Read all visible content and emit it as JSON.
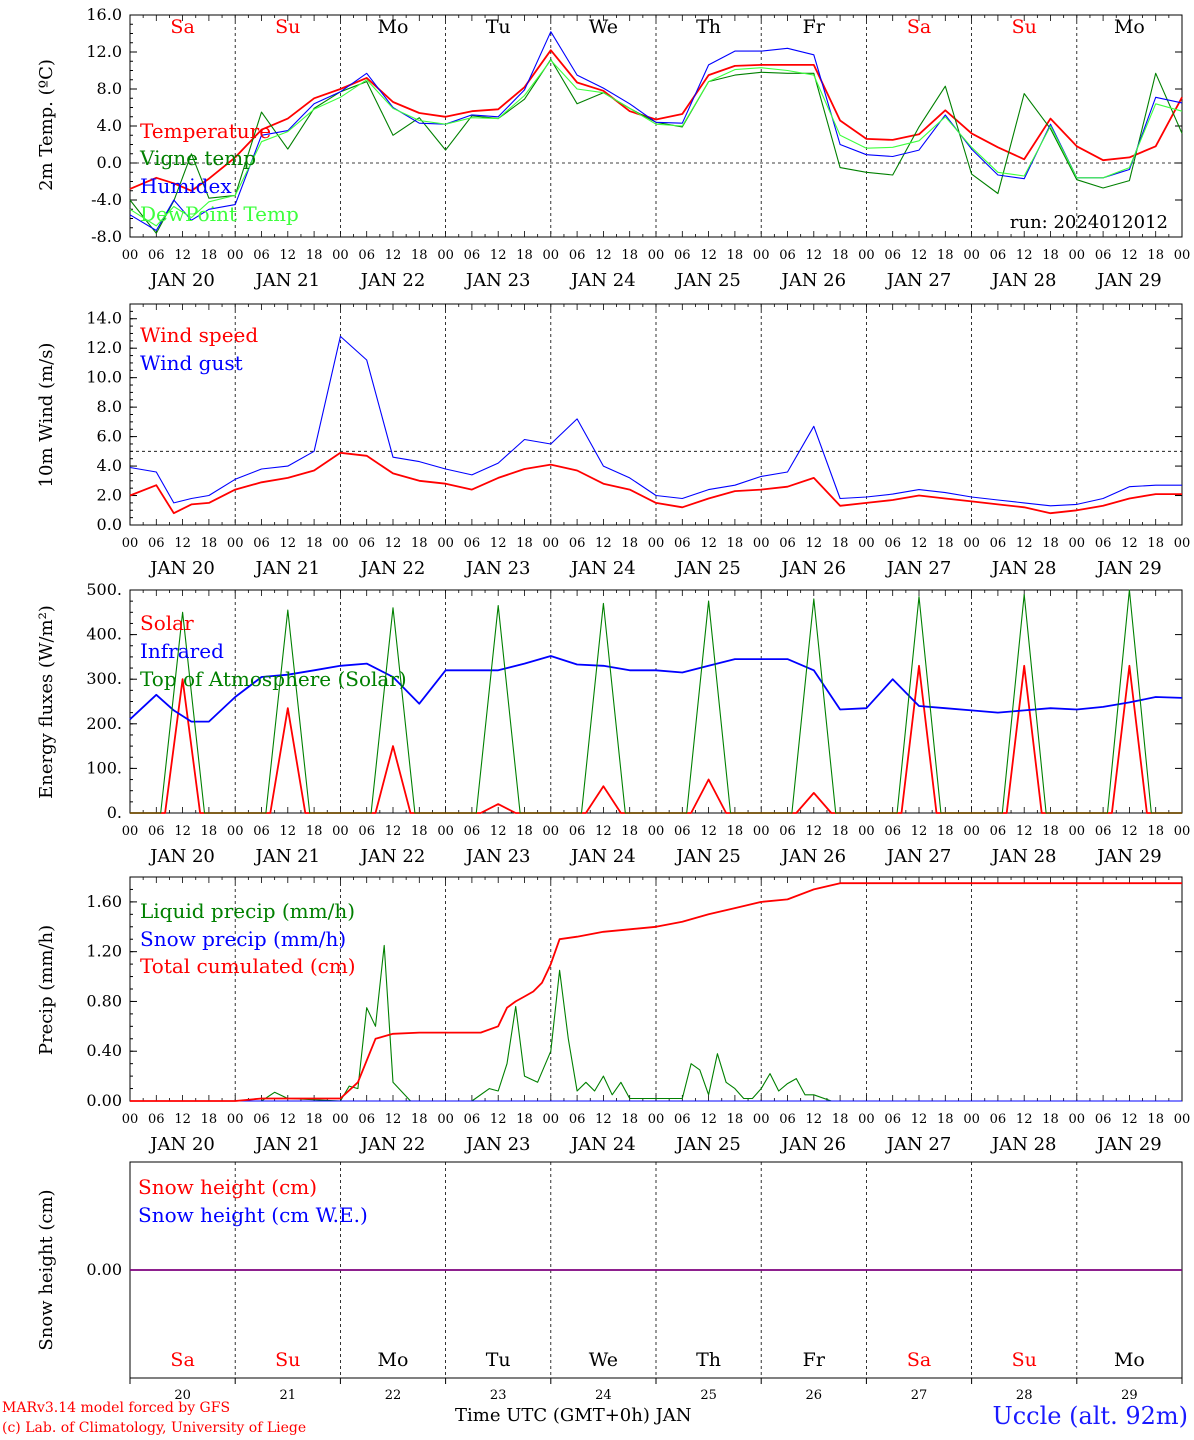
{
  "footer": {
    "credit_line1": "MARv3.14 model forced by GFS",
    "credit_line2": "(c) Lab. of Climatology, University of Liege",
    "x_axis_title": "Time UTC (GMT+0h) JAN",
    "station": "Uccle (alt. 92m)"
  },
  "run_label": "run: 2024012012",
  "colors": {
    "red": "#ff0000",
    "blue": "#0000ff",
    "dark_green": "#008000",
    "light_green": "#3dff3d",
    "purple": "#7f007f",
    "black": "#000000"
  },
  "chart_data": [
    {
      "type": "line",
      "panel": "temperature",
      "ylabel": "2m Temp. (ºC)",
      "ylim": [
        -8,
        16
      ],
      "yticks": [
        "-8.0",
        "-4.0",
        "0.0",
        "4.0",
        "8.0",
        "12.0",
        "16.0"
      ],
      "reference_line": 0,
      "weekdays": [
        "Sa",
        "Su",
        "Mo",
        "Tu",
        "We",
        "Th",
        "Fr",
        "Sa",
        "Su",
        "Mo"
      ],
      "weekday_colors": [
        "#ff0000",
        "#ff0000",
        "#000000",
        "#000000",
        "#000000",
        "#000000",
        "#000000",
        "#ff0000",
        "#ff0000",
        "#000000"
      ],
      "annotation": "run: 2024012012",
      "series": [
        {
          "name": "Temperature",
          "color": "#ff0000",
          "x": [
            0,
            6,
            10,
            14,
            18,
            24,
            30,
            36,
            42,
            48,
            54,
            60,
            66,
            72,
            78,
            84,
            90,
            96,
            102,
            108,
            114,
            120,
            126,
            132,
            138,
            144,
            150,
            156,
            162,
            168,
            174,
            180,
            186,
            192,
            198,
            204,
            210,
            216,
            222,
            228,
            234,
            240
          ],
          "y": [
            -2.8,
            -1.6,
            -2.2,
            -3.0,
            -1.7,
            0.6,
            3.6,
            4.8,
            7.0,
            8.0,
            9.2,
            6.6,
            5.4,
            5.0,
            5.6,
            5.8,
            8.2,
            12.2,
            8.7,
            7.8,
            5.6,
            4.7,
            5.3,
            9.5,
            10.5,
            10.6,
            10.6,
            10.6,
            4.6,
            2.6,
            2.5,
            3.1,
            5.7,
            3.2,
            1.7,
            0.4,
            4.8,
            1.8,
            0.3,
            0.6,
            1.8,
            7.1
          ]
        },
        {
          "name": "Vigne temp",
          "color": "#008000",
          "x": [
            0,
            6,
            10,
            14,
            18,
            24,
            30,
            36,
            42,
            48,
            54,
            60,
            66,
            72,
            78,
            84,
            90,
            96,
            102,
            108,
            114,
            120,
            126,
            132,
            138,
            144,
            150,
            156,
            162,
            168,
            174,
            180,
            186,
            192,
            198,
            204,
            210,
            216,
            222,
            228,
            234,
            240
          ],
          "y": [
            -4.0,
            -7.6,
            -4.1,
            1.0,
            -3.8,
            -3.5,
            5.5,
            1.5,
            5.9,
            7.7,
            8.8,
            3.0,
            4.9,
            1.4,
            5.1,
            4.8,
            6.9,
            11.2,
            6.4,
            7.6,
            5.9,
            4.4,
            3.9,
            8.8,
            9.5,
            9.8,
            9.7,
            9.7,
            -0.5,
            -1.0,
            -1.3,
            3.9,
            8.3,
            -1.2,
            -3.3,
            7.5,
            3.7,
            -1.8,
            -2.7,
            -1.9,
            9.7,
            3.2
          ]
        },
        {
          "name": "Humidex",
          "color": "#0000ff",
          "x": [
            0,
            6,
            10,
            14,
            18,
            24,
            30,
            36,
            42,
            48,
            54,
            60,
            66,
            72,
            78,
            84,
            90,
            96,
            102,
            108,
            114,
            120,
            126,
            132,
            138,
            144,
            150,
            156,
            162,
            168,
            174,
            180,
            186,
            192,
            198,
            204,
            210,
            216,
            222,
            228,
            234,
            240
          ],
          "y": [
            -5.6,
            -7.3,
            -4.0,
            -6.2,
            -5.0,
            -4.5,
            3.0,
            3.5,
            6.4,
            7.7,
            9.7,
            6.0,
            4.3,
            4.2,
            5.2,
            5.0,
            7.9,
            14.2,
            9.5,
            8.1,
            6.4,
            4.4,
            4.3,
            10.6,
            12.1,
            12.1,
            12.4,
            11.7,
            2.0,
            0.9,
            0.7,
            1.4,
            5.2,
            1.5,
            -1.3,
            -1.7,
            4.2,
            -1.6,
            -1.6,
            -0.7,
            7.1,
            6.5
          ]
        },
        {
          "name": "DewPoint Temp",
          "color": "#3dff3d",
          "x": [
            0,
            6,
            10,
            14,
            18,
            24,
            30,
            36,
            42,
            48,
            54,
            60,
            66,
            72,
            78,
            84,
            90,
            96,
            102,
            108,
            114,
            120,
            126,
            132,
            138,
            144,
            150,
            156,
            162,
            168,
            174,
            180,
            186,
            192,
            198,
            204,
            210,
            216,
            222,
            228,
            234,
            240
          ],
          "y": [
            -5.0,
            -6.8,
            -4.7,
            -5.9,
            -4.2,
            -3.5,
            2.3,
            3.4,
            5.8,
            7.1,
            9.0,
            5.9,
            4.6,
            4.2,
            4.9,
            4.8,
            7.3,
            11.1,
            8.0,
            7.6,
            5.9,
            4.2,
            4.0,
            8.8,
            10.1,
            10.3,
            10.0,
            9.5,
            3.0,
            1.6,
            1.7,
            2.4,
            5.0,
            1.7,
            -1.0,
            -1.4,
            4.0,
            -1.6,
            -1.6,
            -0.5,
            6.4,
            5.6
          ]
        }
      ]
    },
    {
      "type": "line",
      "panel": "wind",
      "ylabel": "10m Wind (m/s)",
      "ylim": [
        0,
        15
      ],
      "yticks": [
        "0.0",
        "2.0",
        "4.0",
        "6.0",
        "8.0",
        "10.0",
        "12.0",
        "14.0"
      ],
      "reference_line": 5,
      "series": [
        {
          "name": "Wind speed",
          "color": "#ff0000",
          "x": [
            0,
            6,
            10,
            14,
            18,
            24,
            30,
            36,
            42,
            48,
            54,
            60,
            66,
            72,
            78,
            84,
            90,
            96,
            102,
            108,
            114,
            120,
            126,
            132,
            138,
            144,
            150,
            156,
            162,
            168,
            174,
            180,
            186,
            192,
            198,
            204,
            210,
            216,
            222,
            228,
            234,
            240
          ],
          "y": [
            2.0,
            2.7,
            0.8,
            1.4,
            1.5,
            2.4,
            2.9,
            3.2,
            3.7,
            4.9,
            4.7,
            3.5,
            3.0,
            2.8,
            2.4,
            3.2,
            3.8,
            4.1,
            3.7,
            2.8,
            2.4,
            1.5,
            1.2,
            1.8,
            2.3,
            2.4,
            2.6,
            3.2,
            1.3,
            1.5,
            1.7,
            2.0,
            1.8,
            1.6,
            1.4,
            1.2,
            0.8,
            1.0,
            1.3,
            1.8,
            2.1,
            2.1
          ]
        },
        {
          "name": "Wind gust",
          "color": "#0000ff",
          "x": [
            0,
            6,
            10,
            14,
            18,
            24,
            30,
            36,
            42,
            48,
            54,
            60,
            66,
            72,
            78,
            84,
            90,
            96,
            102,
            108,
            114,
            120,
            126,
            132,
            138,
            144,
            150,
            156,
            162,
            168,
            174,
            180,
            186,
            192,
            198,
            204,
            210,
            216,
            222,
            228,
            234,
            240
          ],
          "y": [
            3.9,
            3.6,
            1.5,
            1.8,
            2.0,
            3.1,
            3.8,
            4.0,
            5.0,
            12.8,
            11.2,
            4.6,
            4.3,
            3.8,
            3.4,
            4.2,
            5.8,
            5.5,
            7.2,
            4.0,
            3.2,
            2.0,
            1.8,
            2.4,
            2.7,
            3.3,
            3.6,
            6.7,
            1.8,
            1.9,
            2.1,
            2.4,
            2.2,
            1.9,
            1.7,
            1.5,
            1.3,
            1.4,
            1.8,
            2.6,
            2.7,
            2.7
          ]
        }
      ]
    },
    {
      "type": "line",
      "panel": "fluxes",
      "ylabel": "Energy fluxes (W/m²)",
      "ylim": [
        0,
        500
      ],
      "yticks": [
        "0.",
        "100.",
        "200.",
        "300.",
        "400.",
        "500."
      ],
      "series": [
        {
          "name": "Solar",
          "color": "#ff0000",
          "daily_peaks": [
            300,
            235,
            150,
            20,
            60,
            75,
            45,
            330,
            330,
            330
          ]
        },
        {
          "name": "Infrared",
          "color": "#0000ff",
          "x": [
            0,
            6,
            10,
            14,
            18,
            24,
            30,
            36,
            42,
            48,
            54,
            60,
            66,
            72,
            78,
            84,
            90,
            96,
            102,
            108,
            114,
            120,
            126,
            132,
            138,
            144,
            150,
            156,
            162,
            168,
            174,
            180,
            186,
            192,
            198,
            204,
            210,
            216,
            222,
            228,
            234,
            240
          ],
          "y": [
            210,
            265,
            230,
            205,
            205,
            260,
            305,
            310,
            320,
            330,
            335,
            305,
            245,
            320,
            320,
            320,
            335,
            352,
            333,
            330,
            320,
            320,
            315,
            330,
            345,
            345,
            345,
            320,
            232,
            235,
            300,
            240,
            235,
            230,
            225,
            230,
            235,
            232,
            238,
            248,
            260,
            258
          ]
        },
        {
          "name": "Top of Atmosphere (Solar)",
          "color": "#008000",
          "daily_peaks": [
            450,
            455,
            460,
            465,
            470,
            475,
            480,
            485,
            490,
            500
          ]
        }
      ]
    },
    {
      "type": "line",
      "panel": "precip",
      "ylabel": "Precip (mm/h)",
      "ylim": [
        0,
        1.8
      ],
      "yticks": [
        "0.00",
        "0.40",
        "0.80",
        "1.20",
        "1.60"
      ],
      "series": [
        {
          "name": "Liquid precip (mm/h)",
          "color": "#008000",
          "x": [
            0,
            30,
            33,
            36,
            48,
            50,
            52,
            54,
            56,
            58,
            60,
            64,
            72,
            78,
            82,
            84,
            86,
            88,
            90,
            93,
            96,
            98,
            100,
            102,
            104,
            106,
            108,
            110,
            112,
            114,
            120,
            126,
            128,
            130,
            132,
            134,
            136,
            138,
            140,
            142,
            144,
            146,
            148,
            150,
            152,
            154,
            156,
            160,
            180,
            240
          ],
          "y": [
            0,
            0,
            0.07,
            0.02,
            0,
            0.12,
            0.1,
            0.75,
            0.6,
            1.25,
            0.15,
            0,
            0,
            0,
            0.1,
            0.08,
            0.3,
            0.76,
            0.2,
            0.15,
            0.4,
            1.05,
            0.5,
            0.08,
            0.15,
            0.08,
            0.2,
            0.05,
            0.15,
            0.02,
            0.02,
            0.02,
            0.3,
            0.25,
            0.05,
            0.38,
            0.15,
            0.1,
            0.02,
            0.02,
            0.1,
            0.22,
            0.08,
            0.14,
            0.18,
            0.05,
            0.05,
            0,
            0,
            0
          ]
        },
        {
          "name": "Snow precip (mm/h)",
          "color": "#0000ff",
          "x": [
            0,
            240
          ],
          "y": [
            0,
            0
          ]
        },
        {
          "name": "Total cumulated (cm)",
          "color": "#ff0000",
          "x": [
            0,
            24,
            30,
            48,
            52,
            56,
            60,
            66,
            72,
            80,
            84,
            86,
            88,
            90,
            92,
            94,
            96,
            98,
            102,
            108,
            114,
            120,
            126,
            132,
            138,
            144,
            150,
            156,
            162,
            168,
            180,
            240
          ],
          "y": [
            0,
            0,
            0.02,
            0.02,
            0.15,
            0.5,
            0.54,
            0.55,
            0.55,
            0.55,
            0.6,
            0.75,
            0.8,
            0.84,
            0.88,
            0.95,
            1.1,
            1.3,
            1.32,
            1.36,
            1.38,
            1.4,
            1.44,
            1.5,
            1.55,
            1.6,
            1.62,
            1.7,
            1.75,
            1.75,
            1.75,
            1.75
          ]
        }
      ]
    },
    {
      "type": "line",
      "panel": "snow",
      "ylabel": "Snow height (cm)",
      "yticks": [
        "0.00"
      ],
      "weekdays": [
        "Sa",
        "Su",
        "Mo",
        "Tu",
        "We",
        "Th",
        "Fr",
        "Sa",
        "Su",
        "Mo"
      ],
      "day_numbers": [
        "20",
        "21",
        "22",
        "23",
        "24",
        "25",
        "26",
        "27",
        "28",
        "29"
      ],
      "series": [
        {
          "name": "Snow height (cm)",
          "color": "#ff0000",
          "x": [
            0,
            240
          ],
          "y": [
            0,
            0
          ]
        },
        {
          "name": "Snow height (cm W.E.)",
          "color": "#0000ff",
          "x": [
            0,
            240
          ],
          "y": [
            0,
            0
          ]
        }
      ]
    }
  ],
  "x_axis": {
    "hour_labels": [
      "00",
      "06",
      "12",
      "18"
    ],
    "date_labels": [
      "JAN 20",
      "JAN 21",
      "JAN 22",
      "JAN 23",
      "JAN 24",
      "JAN 25",
      "JAN 26",
      "JAN 27",
      "JAN 28",
      "JAN 29"
    ]
  }
}
